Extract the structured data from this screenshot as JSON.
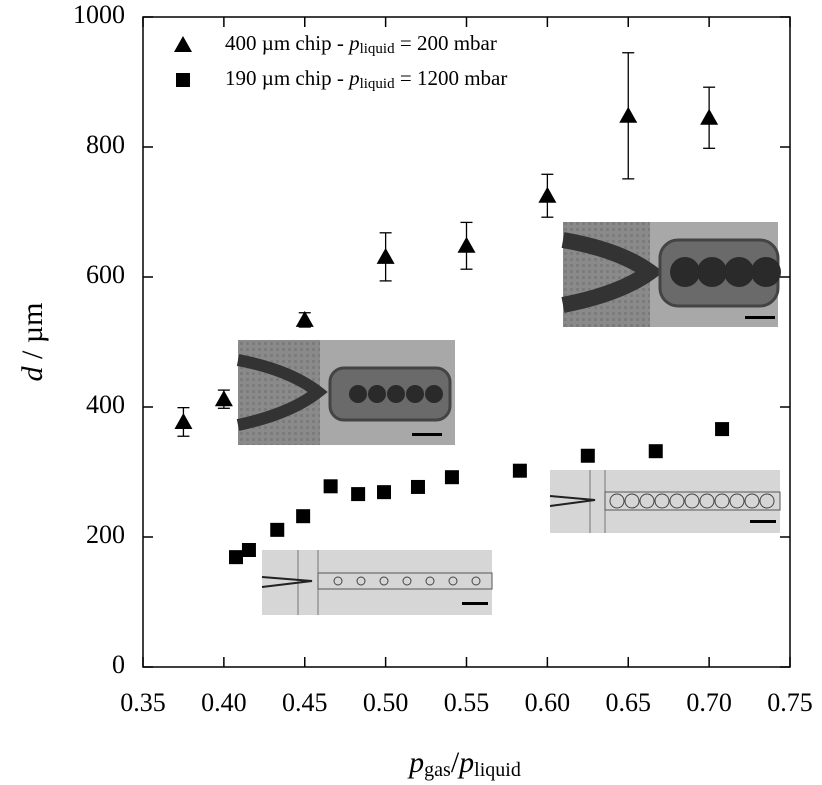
{
  "chart_data": {
    "type": "scatter",
    "xlabel": [
      "p",
      "gas",
      "/",
      "p",
      "liquid"
    ],
    "ylabel": [
      "d",
      " / µm"
    ],
    "xlim": [
      0.35,
      0.75
    ],
    "ylim": [
      0,
      1000
    ],
    "xticks": [
      0.35,
      {
        "value": 0.4,
        "label": "0.40"
      },
      0.45,
      {
        "value": 0.5,
        "label": "0.50"
      },
      0.55,
      {
        "value": 0.6,
        "label": "0.60"
      },
      0.65,
      {
        "value": 0.7,
        "label": "0.70"
      },
      0.75
    ],
    "yticks": [
      0,
      200,
      400,
      600,
      800,
      1000
    ],
    "series": [
      {
        "name": [
          "400 µm chip - ",
          "p",
          "liquid",
          " = 200 mbar"
        ],
        "marker": "triangle",
        "color": "#000000",
        "x": [
          0.375,
          0.4,
          0.45,
          0.5,
          0.55,
          0.6,
          0.65,
          0.7
        ],
        "values": [
          377,
          412,
          534,
          631,
          648,
          725,
          848,
          845
        ],
        "errors": [
          22,
          14,
          11,
          37,
          36,
          33,
          97,
          47
        ]
      },
      {
        "name": [
          "190 µm chip - ",
          "p",
          "liquid",
          " = 1200 mbar"
        ],
        "marker": "square",
        "color": "#000000",
        "x": [
          0.4075,
          0.4155,
          0.433,
          0.449,
          0.466,
          0.483,
          0.499,
          0.52,
          0.541,
          0.583,
          0.625,
          0.667,
          0.708
        ],
        "values": [
          169,
          180,
          211,
          232,
          278,
          266,
          269,
          277,
          292,
          302,
          325,
          332,
          366
        ]
      }
    ]
  }
}
